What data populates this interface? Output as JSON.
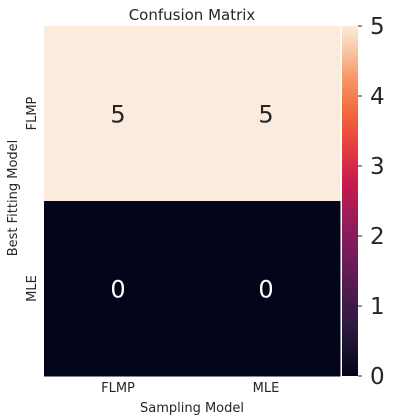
{
  "chart_data": {
    "type": "heatmap",
    "title": "Confusion Matrix",
    "xlabel": "Sampling Model",
    "ylabel": "Best Fitting Model",
    "x_categories": [
      "FLMP",
      "MLE"
    ],
    "y_categories": [
      "FLMP",
      "MLE"
    ],
    "values": [
      [
        5,
        5
      ],
      [
        0,
        0
      ]
    ],
    "value_range": [
      0,
      5
    ],
    "colorbar_ticks": [
      "0",
      "1",
      "2",
      "3",
      "4",
      "5"
    ],
    "colormap": "rocket",
    "high_color": "#faebdd",
    "low_color": "#03051a",
    "grid": false,
    "colorbar_position": "right"
  }
}
